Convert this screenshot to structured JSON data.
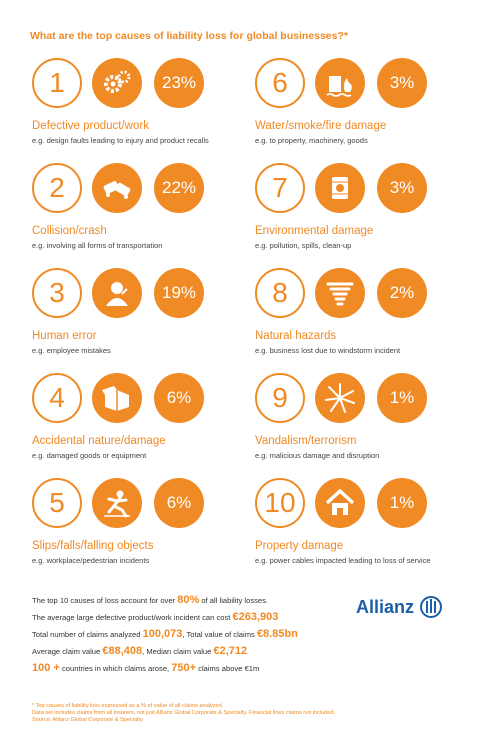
{
  "title": "What are the top causes of liability loss for global businesses?*",
  "causes": [
    {
      "num": "1",
      "pct": "23%",
      "name": "Defective product/work",
      "desc": "e.g. design faults leading to injury and product recalls",
      "icon": "gears-icon"
    },
    {
      "num": "2",
      "pct": "22%",
      "name": "Collision/crash",
      "desc": "e.g. involving all forms of transportation",
      "icon": "crashed-cars-icon"
    },
    {
      "num": "3",
      "pct": "19%",
      "name": "Human error",
      "desc": "e.g. employee mistakes",
      "icon": "confused-person-icon"
    },
    {
      "num": "4",
      "pct": "6%",
      "name": "Accidental nature/damage",
      "desc": "e.g. damaged goods or equipment",
      "icon": "damaged-box-icon"
    },
    {
      "num": "5",
      "pct": "6%",
      "name": "Slips/falls/falling objects",
      "desc": "e.g. workplace/pedestrian incidents",
      "icon": "falling-person-icon"
    },
    {
      "num": "6",
      "pct": "3%",
      "name": "Water/smoke/fire damage",
      "desc": "e.g. to property, machinery, goods",
      "icon": "building-fire-icon"
    },
    {
      "num": "7",
      "pct": "3%",
      "name": "Environmental damage",
      "desc": "e.g. pollution, spills, clean-up",
      "icon": "hazard-barrel-icon"
    },
    {
      "num": "8",
      "pct": "2%",
      "name": "Natural hazards",
      "desc": "e.g. business lost due to windstorm incident",
      "icon": "tornado-icon"
    },
    {
      "num": "9",
      "pct": "1%",
      "name": "Vandalism/terrorism",
      "desc": "e.g. malicious damage and disruption",
      "icon": "broken-glass-icon"
    },
    {
      "num": "10",
      "pct": "1%",
      "name": "Property damage",
      "desc": "e.g. power cables impacted leading to loss of service",
      "icon": "damaged-house-icon"
    }
  ],
  "stats": {
    "line1_a": "The top 10 causes of loss account for over ",
    "line1_b": "80%",
    "line1_c": " of all liability losses.",
    "line2_a": "The average large defective product/work incident can cost ",
    "line2_b": "€263,903",
    "line3_a": "Total number of claims analyzed ",
    "line3_b": "100,073",
    "line3_c": ",  Total value of claims ",
    "line3_d": "€8.85bn",
    "line4_a": "Average claim value ",
    "line4_b": "€88,408",
    "line4_c": ",  Median claim value ",
    "line4_d": "€2,712",
    "line5_a": "100 +",
    "line5_b": " countries in which claims arose,  ",
    "line5_c": "750+",
    "line5_d": " claims above €1m"
  },
  "logo": {
    "word": "Allianz"
  },
  "footnotes": [
    "* Top causes of liability loss expressed as a % of value of all claims analyzed.",
    "Data set includes claims from all insurers, not just Allianz Global Corporate & Specialty. Financial lines claims not included.",
    "Source: Allianz Global Corporate & Specialty."
  ],
  "colors": {
    "accent": "#f08a24",
    "brand": "#1a5fa8"
  }
}
